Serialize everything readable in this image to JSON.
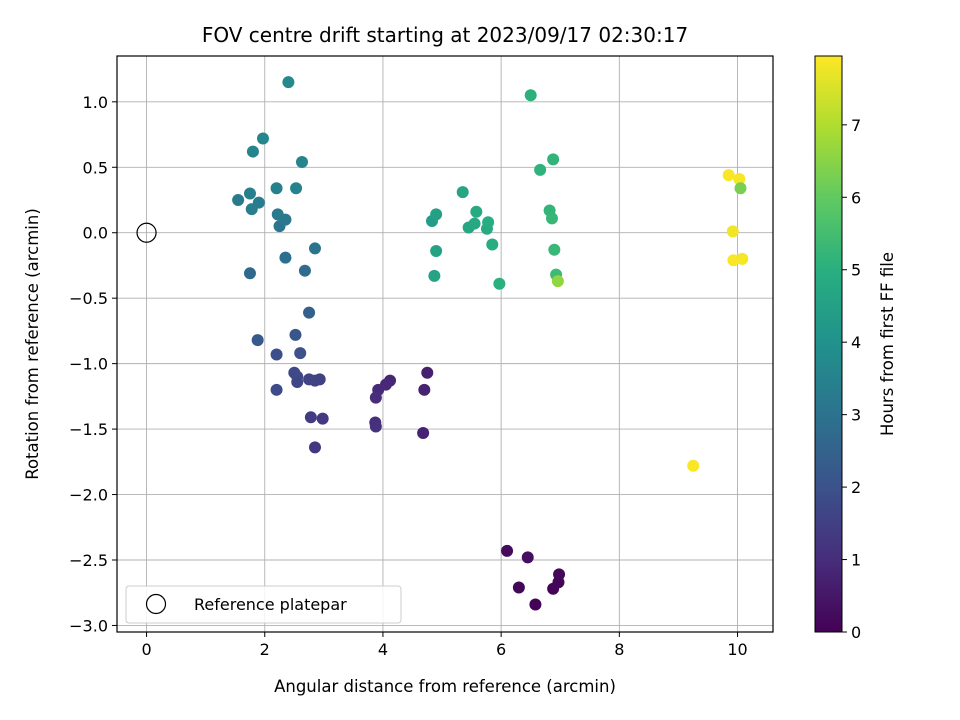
{
  "chart_data": {
    "type": "scatter",
    "title": "FOV centre drift starting at 2023/09/17 02:30:17",
    "xlabel": "Angular distance from reference (arcmin)",
    "ylabel": "Rotation from reference (arcmin)",
    "xlim": [
      -0.5,
      10.6
    ],
    "ylim": [
      -3.05,
      1.35
    ],
    "x_ticks": [
      0,
      2,
      4,
      6,
      8,
      10
    ],
    "y_ticks": [
      1.0,
      0.5,
      0.0,
      -0.5,
      -1.0,
      -1.5,
      -2.0,
      -2.5,
      -3.0
    ],
    "x_tick_labels": [
      "0",
      "2",
      "4",
      "6",
      "8",
      "10"
    ],
    "y_tick_labels": [
      "1.0",
      "0.5",
      "0.0",
      "−0.5",
      "−1.0",
      "−1.5",
      "−2.0",
      "−2.5",
      "−3.0"
    ],
    "grid": true,
    "legend_location": "lower-left",
    "colormap": "viridis",
    "colorbar": {
      "label": "Hours from first FF file",
      "range": [
        0,
        7.95
      ],
      "ticks": [
        0,
        1,
        2,
        3,
        4,
        5,
        6,
        7
      ],
      "tick_labels": [
        "0",
        "1",
        "2",
        "3",
        "4",
        "5",
        "6",
        "7"
      ]
    },
    "reference": {
      "name": "Reference platepar",
      "x": 0,
      "y": 0
    },
    "points": [
      {
        "x": 6.1,
        "y": -2.43,
        "c": 0.2
      },
      {
        "x": 6.45,
        "y": -2.48,
        "c": 0.3
      },
      {
        "x": 6.3,
        "y": -2.71,
        "c": 0.15
      },
      {
        "x": 6.58,
        "y": -2.84,
        "c": 0.05
      },
      {
        "x": 6.88,
        "y": -2.72,
        "c": 0.1
      },
      {
        "x": 6.97,
        "y": -2.67,
        "c": 0.12
      },
      {
        "x": 6.98,
        "y": -2.61,
        "c": 0.18
      },
      {
        "x": 4.75,
        "y": -1.07,
        "c": 0.7
      },
      {
        "x": 4.7,
        "y": -1.2,
        "c": 0.75
      },
      {
        "x": 4.68,
        "y": -1.53,
        "c": 0.8
      },
      {
        "x": 4.12,
        "y": -1.13,
        "c": 0.85
      },
      {
        "x": 4.05,
        "y": -1.16,
        "c": 0.9
      },
      {
        "x": 3.92,
        "y": -1.2,
        "c": 0.95
      },
      {
        "x": 3.88,
        "y": -1.26,
        "c": 1.0
      },
      {
        "x": 3.87,
        "y": -1.45,
        "c": 1.05
      },
      {
        "x": 3.88,
        "y": -1.48,
        "c": 1.1
      },
      {
        "x": 2.85,
        "y": -1.64,
        "c": 1.3
      },
      {
        "x": 2.78,
        "y": -1.41,
        "c": 1.4
      },
      {
        "x": 2.98,
        "y": -1.42,
        "c": 1.35
      },
      {
        "x": 2.93,
        "y": -1.12,
        "c": 1.5
      },
      {
        "x": 2.85,
        "y": -1.13,
        "c": 1.55
      },
      {
        "x": 2.75,
        "y": -1.12,
        "c": 1.6
      },
      {
        "x": 2.55,
        "y": -1.14,
        "c": 1.65
      },
      {
        "x": 2.55,
        "y": -1.1,
        "c": 1.7
      },
      {
        "x": 2.5,
        "y": -1.07,
        "c": 1.75
      },
      {
        "x": 2.2,
        "y": -1.2,
        "c": 1.8
      },
      {
        "x": 2.2,
        "y": -0.93,
        "c": 1.9
      },
      {
        "x": 2.6,
        "y": -0.92,
        "c": 2.0
      },
      {
        "x": 2.52,
        "y": -0.78,
        "c": 2.1
      },
      {
        "x": 1.88,
        "y": -0.82,
        "c": 2.2
      },
      {
        "x": 2.75,
        "y": -0.61,
        "c": 2.4
      },
      {
        "x": 1.75,
        "y": -0.31,
        "c": 2.7
      },
      {
        "x": 2.68,
        "y": -0.29,
        "c": 2.8
      },
      {
        "x": 2.35,
        "y": -0.19,
        "c": 2.9
      },
      {
        "x": 2.85,
        "y": -0.12,
        "c": 3.0
      },
      {
        "x": 2.25,
        "y": 0.05,
        "c": 3.1
      },
      {
        "x": 2.35,
        "y": 0.1,
        "c": 3.15
      },
      {
        "x": 2.22,
        "y": 0.14,
        "c": 3.2
      },
      {
        "x": 1.55,
        "y": 0.25,
        "c": 3.25
      },
      {
        "x": 1.9,
        "y": 0.23,
        "c": 3.3
      },
      {
        "x": 1.78,
        "y": 0.18,
        "c": 3.35
      },
      {
        "x": 1.75,
        "y": 0.3,
        "c": 3.4
      },
      {
        "x": 2.2,
        "y": 0.34,
        "c": 3.45
      },
      {
        "x": 2.53,
        "y": 0.34,
        "c": 3.5
      },
      {
        "x": 2.63,
        "y": 0.54,
        "c": 3.55
      },
      {
        "x": 1.8,
        "y": 0.62,
        "c": 3.6
      },
      {
        "x": 1.97,
        "y": 0.72,
        "c": 3.65
      },
      {
        "x": 2.4,
        "y": 1.15,
        "c": 3.7
      },
      {
        "x": 4.83,
        "y": 0.09,
        "c": 4.4
      },
      {
        "x": 4.9,
        "y": 0.14,
        "c": 4.5
      },
      {
        "x": 4.9,
        "y": -0.14,
        "c": 4.55
      },
      {
        "x": 4.87,
        "y": -0.33,
        "c": 4.6
      },
      {
        "x": 5.35,
        "y": 0.31,
        "c": 4.65
      },
      {
        "x": 5.45,
        "y": 0.04,
        "c": 4.7
      },
      {
        "x": 5.55,
        "y": 0.07,
        "c": 4.75
      },
      {
        "x": 5.58,
        "y": 0.16,
        "c": 4.8
      },
      {
        "x": 5.76,
        "y": 0.03,
        "c": 4.85
      },
      {
        "x": 5.78,
        "y": 0.08,
        "c": 4.9
      },
      {
        "x": 5.85,
        "y": -0.09,
        "c": 4.95
      },
      {
        "x": 5.97,
        "y": -0.39,
        "c": 5.0
      },
      {
        "x": 6.5,
        "y": 1.05,
        "c": 5.05
      },
      {
        "x": 6.66,
        "y": 0.48,
        "c": 5.1
      },
      {
        "x": 6.88,
        "y": 0.56,
        "c": 5.15
      },
      {
        "x": 6.82,
        "y": 0.17,
        "c": 5.2
      },
      {
        "x": 6.86,
        "y": 0.11,
        "c": 5.25
      },
      {
        "x": 6.9,
        "y": -0.13,
        "c": 5.3
      },
      {
        "x": 6.93,
        "y": -0.32,
        "c": 5.4
      },
      {
        "x": 6.96,
        "y": -0.37,
        "c": 6.6
      },
      {
        "x": 9.85,
        "y": 0.44,
        "c": 7.9
      },
      {
        "x": 10.03,
        "y": 0.41,
        "c": 7.85
      },
      {
        "x": 10.05,
        "y": 0.34,
        "c": 6.3
      },
      {
        "x": 9.92,
        "y": 0.01,
        "c": 7.8
      },
      {
        "x": 9.93,
        "y": -0.21,
        "c": 7.9
      },
      {
        "x": 10.08,
        "y": -0.2,
        "c": 7.85
      },
      {
        "x": 9.25,
        "y": -1.78,
        "c": 7.9
      }
    ]
  }
}
